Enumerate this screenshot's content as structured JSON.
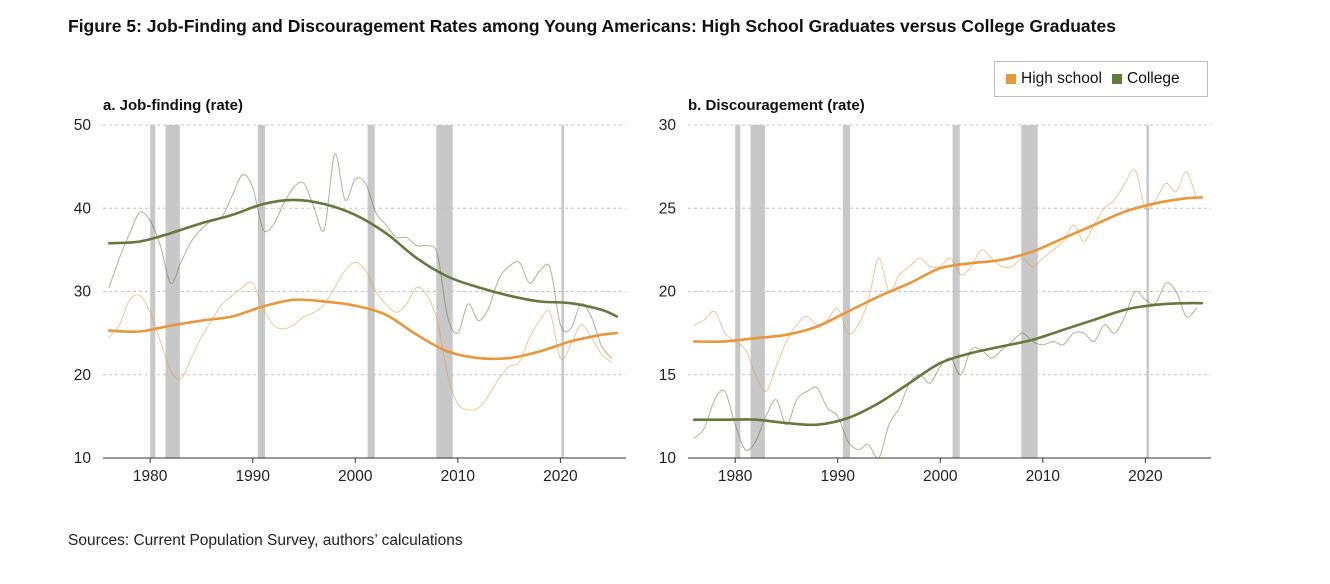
{
  "figure_title": "Figure 5: Job-Finding and Discouragement Rates among Young Americans: High School Graduates versus College Graduates",
  "source": "Sources: Current Population Survey, authors’ calculations",
  "legend": {
    "items": [
      {
        "label": "High school",
        "color": "#e8973b"
      },
      {
        "label": "College",
        "color": "#627a3c"
      }
    ]
  },
  "colors": {
    "high_school": "#e8973b",
    "college": "#627a3c",
    "recession": "#c8c8c8",
    "grid": "#c4c4c4"
  },
  "chart_data": [
    {
      "type": "line",
      "title": "a. Job-finding (rate)",
      "xlabel": "",
      "ylabel": "",
      "xlim": [
        1975.4,
        2026.4
      ],
      "ylim": [
        10,
        50
      ],
      "xticks": [
        1980,
        1990,
        2000,
        2010,
        2020
      ],
      "yticks": [
        10,
        20,
        30,
        40,
        50
      ],
      "grid": "horizontal dashed",
      "recessions": [
        [
          1980.0,
          1980.5
        ],
        [
          1981.5,
          1982.9
        ],
        [
          1990.5,
          1991.2
        ],
        [
          2001.2,
          2001.9
        ],
        [
          2007.9,
          2009.5
        ],
        [
          2020.1,
          2020.35
        ]
      ],
      "series": [
        {
          "name": "High school",
          "kind": "trend",
          "x": [
            1976,
            1979,
            1982,
            1985,
            1988,
            1991,
            1994,
            1997,
            2000,
            2003,
            2006,
            2009,
            2012,
            2015,
            2018,
            2021,
            2024,
            2025.5
          ],
          "y": [
            25.3,
            25.2,
            25.9,
            26.5,
            27,
            28.2,
            29,
            28.8,
            28.3,
            27.2,
            24.8,
            22.8,
            22,
            22,
            22.8,
            24,
            24.8,
            25
          ]
        },
        {
          "name": "College",
          "kind": "trend",
          "x": [
            1976,
            1979,
            1982,
            1985,
            1988,
            1991,
            1994,
            1997,
            2000,
            2003,
            2006,
            2009,
            2012,
            2015,
            2018,
            2021,
            2024,
            2025.5
          ],
          "y": [
            35.8,
            36,
            37,
            38.2,
            39.2,
            40.5,
            41,
            40.5,
            39.2,
            37,
            34,
            31.8,
            30.5,
            29.5,
            28.8,
            28.6,
            27.8,
            27
          ]
        },
        {
          "name": "High school",
          "kind": "raw",
          "x": [
            1976,
            1977,
            1978,
            1979,
            1980,
            1981,
            1982,
            1983,
            1984,
            1985,
            1986,
            1987,
            1988,
            1989,
            1990,
            1991,
            1992,
            1993,
            1994,
            1995,
            1996,
            1997,
            1998,
            1999,
            2000,
            2001,
            2002,
            2003,
            2004,
            2005,
            2006,
            2007,
            2008,
            2009,
            2010,
            2011,
            2012,
            2013,
            2014,
            2015,
            2016,
            2017,
            2018,
            2019,
            2020,
            2021,
            2022,
            2023,
            2024,
            2025
          ],
          "y": [
            24.5,
            26,
            29,
            29.5,
            27.5,
            24,
            20.5,
            19.5,
            22,
            24.5,
            26.5,
            28.5,
            29.5,
            30.5,
            31,
            28,
            26,
            25.5,
            26,
            27,
            27.5,
            28.5,
            30.5,
            32.5,
            33.5,
            32.5,
            30,
            28.5,
            27.5,
            28.5,
            30.5,
            29.5,
            26.5,
            20,
            16.5,
            15.8,
            16,
            17.5,
            19.5,
            21,
            21.5,
            24.5,
            26.5,
            27.5,
            22,
            23.5,
            26,
            24.5,
            22.5,
            21.5
          ]
        },
        {
          "name": "College",
          "kind": "raw",
          "x": [
            1976,
            1977,
            1978,
            1979,
            1980,
            1981,
            1982,
            1983,
            1984,
            1985,
            1986,
            1987,
            1988,
            1989,
            1990,
            1991,
            1992,
            1993,
            1994,
            1995,
            1996,
            1997,
            1998,
            1999,
            2000,
            2001,
            2002,
            2003,
            2004,
            2005,
            2006,
            2007,
            2008,
            2009,
            2010,
            2011,
            2012,
            2013,
            2014,
            2015,
            2016,
            2017,
            2018,
            2019,
            2020,
            2021,
            2022,
            2023,
            2024,
            2025
          ],
          "y": [
            30.5,
            34,
            37,
            39.5,
            38.5,
            35.5,
            31,
            33.5,
            36,
            37.5,
            38.5,
            39,
            41.5,
            44,
            42.5,
            37.5,
            38,
            40.5,
            42.5,
            43,
            40,
            37.5,
            46.5,
            41,
            43.5,
            43,
            39.5,
            38,
            36.5,
            36.5,
            35.5,
            35.5,
            34.5,
            27,
            25,
            28.5,
            26.5,
            28,
            31.5,
            33,
            33.5,
            31,
            32.5,
            32.8,
            26,
            25.5,
            28.5,
            27,
            23.5,
            22
          ]
        }
      ]
    },
    {
      "type": "line",
      "title": "b. Discouragement (rate)",
      "xlabel": "",
      "ylabel": "",
      "xlim": [
        1975.4,
        2026.4
      ],
      "ylim": [
        10,
        30
      ],
      "xticks": [
        1980,
        1990,
        2000,
        2010,
        2020
      ],
      "yticks": [
        10,
        15,
        20,
        25,
        30
      ],
      "grid": "horizontal dashed",
      "recessions": [
        [
          1980.0,
          1980.5
        ],
        [
          1981.5,
          1982.9
        ],
        [
          1990.5,
          1991.2
        ],
        [
          2001.2,
          2001.9
        ],
        [
          2007.9,
          2009.5
        ],
        [
          2020.1,
          2020.35
        ]
      ],
      "series": [
        {
          "name": "High school",
          "kind": "trend",
          "x": [
            1976,
            1979,
            1982,
            1985,
            1988,
            1991,
            1994,
            1997,
            2000,
            2003,
            2006,
            2009,
            2012,
            2015,
            2018,
            2021,
            2024,
            2025.5
          ],
          "y": [
            17,
            17,
            17.2,
            17.4,
            17.9,
            18.8,
            19.7,
            20.5,
            21.4,
            21.7,
            21.9,
            22.4,
            23.2,
            24,
            24.8,
            25.3,
            25.6,
            25.65
          ]
        },
        {
          "name": "College",
          "kind": "trend",
          "x": [
            1976,
            1979,
            1982,
            1985,
            1988,
            1991,
            1994,
            1997,
            2000,
            2003,
            2006,
            2009,
            2012,
            2015,
            2018,
            2021,
            2024,
            2025.5
          ],
          "y": [
            12.3,
            12.3,
            12.3,
            12.1,
            12,
            12.4,
            13.3,
            14.5,
            15.7,
            16.3,
            16.7,
            17.1,
            17.7,
            18.3,
            18.9,
            19.2,
            19.3,
            19.3
          ]
        },
        {
          "name": "High school",
          "kind": "raw",
          "x": [
            1976,
            1977,
            1978,
            1979,
            1980,
            1981,
            1982,
            1983,
            1984,
            1985,
            1986,
            1987,
            1988,
            1989,
            1990,
            1991,
            1992,
            1993,
            1994,
            1995,
            1996,
            1997,
            1998,
            1999,
            2000,
            2001,
            2002,
            2003,
            2004,
            2005,
            2006,
            2007,
            2008,
            2009,
            2010,
            2011,
            2012,
            2013,
            2014,
            2015,
            2016,
            2017,
            2018,
            2019,
            2020,
            2021,
            2022,
            2023,
            2024,
            2025
          ],
          "y": [
            18,
            18.3,
            18.8,
            17.5,
            17,
            16.5,
            15,
            14,
            15.5,
            17,
            18,
            18.5,
            18,
            18.3,
            19,
            17.5,
            18,
            19.5,
            22,
            20,
            21,
            21.5,
            22,
            21.5,
            21.5,
            22,
            21,
            21.5,
            22.5,
            22,
            21.5,
            21.5,
            22,
            21.5,
            22,
            22.5,
            23,
            24,
            23,
            24,
            25,
            25.5,
            26.5,
            27.3,
            25,
            25.5,
            26.5,
            26,
            27.2,
            25.5
          ]
        },
        {
          "name": "College",
          "kind": "raw",
          "x": [
            1976,
            1977,
            1978,
            1979,
            1980,
            1981,
            1982,
            1983,
            1984,
            1985,
            1986,
            1987,
            1988,
            1989,
            1990,
            1991,
            1992,
            1993,
            1994,
            1995,
            1996,
            1997,
            1998,
            1999,
            2000,
            2001,
            2002,
            2003,
            2004,
            2005,
            2006,
            2007,
            2008,
            2009,
            2010,
            2011,
            2012,
            2013,
            2014,
            2015,
            2016,
            2017,
            2018,
            2019,
            2020,
            2021,
            2022,
            2023,
            2024,
            2025
          ],
          "y": [
            11.2,
            11.8,
            13.5,
            14,
            12,
            10.5,
            11,
            12.5,
            13.5,
            12,
            13.5,
            14,
            14.2,
            13,
            12.5,
            11,
            10.5,
            10.8,
            10,
            12,
            13,
            14.5,
            15,
            14.5,
            15.5,
            16,
            15,
            16.5,
            16.5,
            16,
            16.5,
            17,
            17.5,
            17,
            16.8,
            17,
            16.8,
            17.5,
            17.5,
            17,
            18,
            17.5,
            18.5,
            20,
            19.5,
            19.3,
            20.5,
            20,
            18.5,
            19
          ]
        }
      ]
    }
  ]
}
